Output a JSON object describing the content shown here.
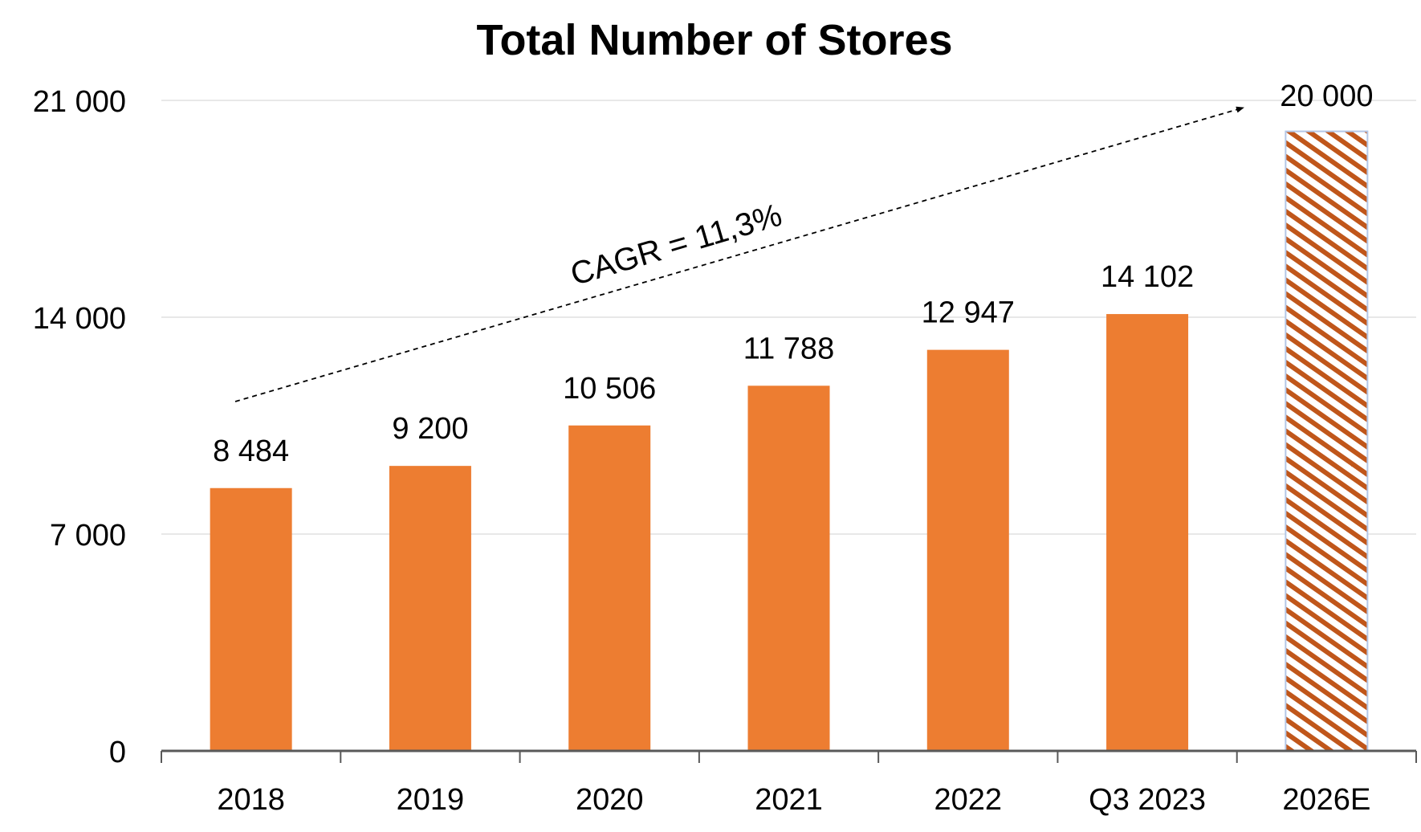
{
  "chart_data": {
    "type": "bar",
    "title": "Total Number of Stores",
    "categories": [
      "2018",
      "2019",
      "2020",
      "2021",
      "2022",
      "Q3 2023",
      "2026E"
    ],
    "values": [
      8484,
      9200,
      10506,
      11788,
      12947,
      14102,
      20000
    ],
    "data_labels": [
      "8 484",
      "9 200",
      "10 506",
      "11 788",
      "12 947",
      "14 102",
      "20 000"
    ],
    "estimated": [
      false,
      false,
      false,
      false,
      false,
      false,
      true
    ],
    "ylim": [
      0,
      21000
    ],
    "yticks": [
      0,
      7000,
      14000,
      21000
    ],
    "ytick_labels": [
      "0",
      "7 000",
      "14 000",
      "21 000"
    ],
    "xlabel": "",
    "ylabel": "",
    "grid": "horizontal",
    "annotation": {
      "text": "CAGR = 11,3%",
      "style": "dashed arrow from 2018 to 2026E"
    },
    "colors": {
      "bar": "#ED7D31",
      "hatch": "#C0561A",
      "hatch_border": "#B4C7E7",
      "grid": "#E8E8E8",
      "axis": "#595959"
    }
  }
}
